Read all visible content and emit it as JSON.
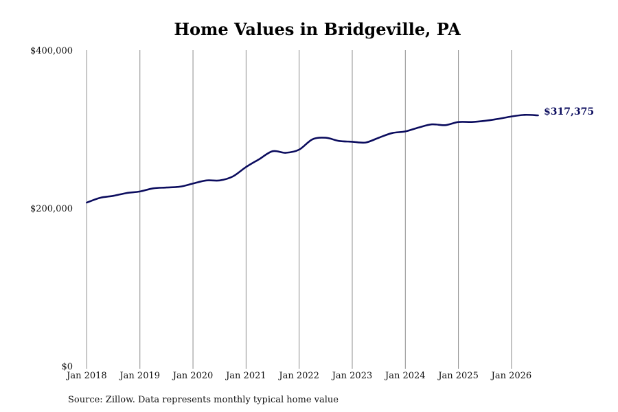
{
  "chart_data": {
    "type": "line",
    "title": "Home Values in Bridgeville, PA",
    "xlabel": "",
    "ylabel": "",
    "ylim": [
      0,
      400000
    ],
    "xlim": [
      "2017-12",
      "2026-08"
    ],
    "y_ticks": [
      {
        "value": 400000,
        "label": "$400,000"
      },
      {
        "value": 200000,
        "label": "$200,000"
      },
      {
        "value": 0,
        "label": "$0"
      }
    ],
    "x_ticks": [
      {
        "date": "2018-01",
        "label": "Jan 2018"
      },
      {
        "date": "2019-01",
        "label": "Jan 2019"
      },
      {
        "date": "2020-01",
        "label": "Jan 2020"
      },
      {
        "date": "2021-01",
        "label": "Jan 2021"
      },
      {
        "date": "2022-01",
        "label": "Jan 2022"
      },
      {
        "date": "2023-01",
        "label": "Jan 2023"
      },
      {
        "date": "2024-01",
        "label": "Jan 2024"
      },
      {
        "date": "2025-01",
        "label": "Jan 2025"
      },
      {
        "date": "2026-01",
        "label": "Jan 2026"
      }
    ],
    "grid": "vertical",
    "series": [
      {
        "color": "#0b0c5e",
        "points": [
          {
            "x": "2018-01",
            "y": 207000
          },
          {
            "x": "2018-04",
            "y": 213000
          },
          {
            "x": "2018-07",
            "y": 215500
          },
          {
            "x": "2018-10",
            "y": 219000
          },
          {
            "x": "2019-01",
            "y": 221000
          },
          {
            "x": "2019-04",
            "y": 225000
          },
          {
            "x": "2019-07",
            "y": 226000
          },
          {
            "x": "2019-10",
            "y": 227000
          },
          {
            "x": "2020-01",
            "y": 231000
          },
          {
            "x": "2020-04",
            "y": 235000
          },
          {
            "x": "2020-07",
            "y": 235000
          },
          {
            "x": "2020-10",
            "y": 240000
          },
          {
            "x": "2021-01",
            "y": 252000
          },
          {
            "x": "2021-04",
            "y": 262000
          },
          {
            "x": "2021-07",
            "y": 272000
          },
          {
            "x": "2021-10",
            "y": 270000
          },
          {
            "x": "2022-01",
            "y": 274000
          },
          {
            "x": "2022-04",
            "y": 287000
          },
          {
            "x": "2022-07",
            "y": 289000
          },
          {
            "x": "2022-10",
            "y": 285000
          },
          {
            "x": "2023-01",
            "y": 284000
          },
          {
            "x": "2023-04",
            "y": 283000
          },
          {
            "x": "2023-07",
            "y": 289000
          },
          {
            "x": "2023-10",
            "y": 295000
          },
          {
            "x": "2024-01",
            "y": 297000
          },
          {
            "x": "2024-04",
            "y": 302000
          },
          {
            "x": "2024-07",
            "y": 306000
          },
          {
            "x": "2024-10",
            "y": 305000
          },
          {
            "x": "2025-01",
            "y": 309000
          },
          {
            "x": "2025-04",
            "y": 309000
          },
          {
            "x": "2025-07",
            "y": 310500
          },
          {
            "x": "2025-10",
            "y": 313000
          },
          {
            "x": "2026-01",
            "y": 316000
          },
          {
            "x": "2026-04",
            "y": 318000
          },
          {
            "x": "2026-07",
            "y": 317375
          }
        ]
      }
    ],
    "end_label": "$317,375",
    "source": "Source: Zillow. Data represents monthly typical home value"
  }
}
